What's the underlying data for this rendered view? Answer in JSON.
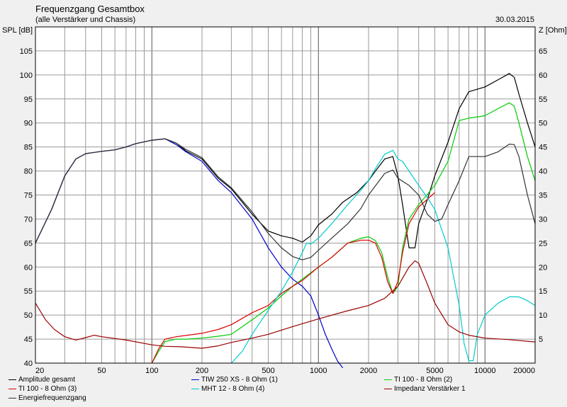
{
  "header": {
    "title": "Frequenzgang Gesamtbox",
    "subtitle": "(alle Verstärker und Chassis)",
    "date": "30.03.2015"
  },
  "chart_data": {
    "type": "line",
    "ylabel": "SPL [dB]",
    "y2label": "Z [Ohm]",
    "xscale": "log",
    "xlim": [
      20,
      20000
    ],
    "ylim": [
      40,
      110
    ],
    "y2lim": [
      0,
      70
    ],
    "grid": true,
    "legend_position": "bottom",
    "x_ticks": [
      20,
      50,
      100,
      200,
      500,
      1000,
      2000,
      5000,
      10000,
      20000
    ],
    "y_ticks": [
      40,
      45,
      50,
      55,
      60,
      65,
      70,
      75,
      80,
      85,
      90,
      95,
      100,
      105
    ],
    "y2_ticks": [
      5,
      10,
      15,
      20,
      25,
      30,
      35,
      40,
      45,
      50,
      55,
      60,
      65
    ],
    "series": [
      {
        "name": "Amplitude gesamt",
        "color": "#000000",
        "axis": "left",
        "points": [
          [
            20,
            65
          ],
          [
            25,
            72
          ],
          [
            30,
            79
          ],
          [
            35,
            82.5
          ],
          [
            40,
            83.6
          ],
          [
            50,
            84.1
          ],
          [
            60,
            84.4
          ],
          [
            70,
            85
          ],
          [
            80,
            85.7
          ],
          [
            100,
            86.4
          ],
          [
            120,
            86.7
          ],
          [
            140,
            85.8
          ],
          [
            160,
            84.2
          ],
          [
            200,
            82.5
          ],
          [
            250,
            78.5
          ],
          [
            300,
            76.3
          ],
          [
            400,
            71
          ],
          [
            500,
            67.5
          ],
          [
            600,
            66.5
          ],
          [
            700,
            66
          ],
          [
            800,
            65.2
          ],
          [
            900,
            66.5
          ],
          [
            1000,
            68.8
          ],
          [
            1200,
            71
          ],
          [
            1400,
            73.5
          ],
          [
            1700,
            75.5
          ],
          [
            2000,
            78
          ],
          [
            2200,
            80
          ],
          [
            2500,
            82.5
          ],
          [
            2800,
            83
          ],
          [
            3000,
            79
          ],
          [
            3200,
            73
          ],
          [
            3500,
            64
          ],
          [
            3800,
            64
          ],
          [
            4000,
            69
          ],
          [
            4500,
            74
          ],
          [
            5000,
            79
          ],
          [
            6000,
            86
          ],
          [
            7000,
            93
          ],
          [
            8000,
            96.5
          ],
          [
            10000,
            97.5
          ],
          [
            12000,
            99
          ],
          [
            14000,
            100.3
          ],
          [
            15000,
            99.5
          ],
          [
            16000,
            96
          ],
          [
            18000,
            90
          ],
          [
            20000,
            85
          ]
        ]
      },
      {
        "name": "TIW 250 XS - 8 Ohm (1)",
        "color": "#0000cc",
        "axis": "left",
        "points": [
          [
            20,
            65
          ],
          [
            25,
            72
          ],
          [
            30,
            79
          ],
          [
            35,
            82.5
          ],
          [
            40,
            83.6
          ],
          [
            50,
            84.1
          ],
          [
            60,
            84.4
          ],
          [
            70,
            85
          ],
          [
            80,
            85.7
          ],
          [
            100,
            86.4
          ],
          [
            120,
            86.7
          ],
          [
            140,
            85.5
          ],
          [
            160,
            84
          ],
          [
            200,
            82
          ],
          [
            250,
            78
          ],
          [
            300,
            75.5
          ],
          [
            400,
            70
          ],
          [
            500,
            64
          ],
          [
            600,
            60
          ],
          [
            700,
            57.5
          ],
          [
            800,
            56
          ],
          [
            900,
            54
          ],
          [
            1000,
            50
          ],
          [
            1100,
            46
          ],
          [
            1200,
            43
          ],
          [
            1300,
            40.5
          ],
          [
            1400,
            39
          ]
        ]
      },
      {
        "name": "TI 100 - 8 Ohm (2)",
        "color": "#00cc00",
        "axis": "left",
        "points": [
          [
            100,
            40
          ],
          [
            110,
            42.5
          ],
          [
            120,
            44.5
          ],
          [
            140,
            45
          ],
          [
            160,
            45
          ],
          [
            200,
            45.2
          ],
          [
            250,
            45.6
          ],
          [
            300,
            46
          ],
          [
            400,
            49
          ],
          [
            500,
            51.5
          ],
          [
            600,
            54
          ],
          [
            700,
            56
          ],
          [
            800,
            57.5
          ],
          [
            1000,
            60
          ],
          [
            1200,
            62
          ],
          [
            1500,
            65
          ],
          [
            1800,
            66
          ],
          [
            2000,
            66.3
          ],
          [
            2200,
            65.5
          ],
          [
            2400,
            63
          ],
          [
            2600,
            58
          ],
          [
            2800,
            54.5
          ],
          [
            3000,
            56
          ],
          [
            3200,
            64
          ],
          [
            3500,
            70
          ],
          [
            4000,
            73
          ],
          [
            5000,
            77
          ],
          [
            6000,
            82
          ],
          [
            7000,
            90.5
          ],
          [
            8000,
            91
          ],
          [
            10000,
            91.5
          ],
          [
            12000,
            93
          ],
          [
            14000,
            94.2
          ],
          [
            15000,
            93.5
          ],
          [
            16000,
            90
          ],
          [
            18000,
            83
          ],
          [
            20000,
            78
          ]
        ]
      },
      {
        "name": "TI 100 - 8 Ohm (3)",
        "color": "#dd0000",
        "axis": "left",
        "points": [
          [
            100,
            40
          ],
          [
            110,
            43
          ],
          [
            120,
            45
          ],
          [
            140,
            45.5
          ],
          [
            200,
            46.2
          ],
          [
            250,
            47
          ],
          [
            300,
            48
          ],
          [
            400,
            50.5
          ],
          [
            500,
            52
          ],
          [
            600,
            54.5
          ],
          [
            700,
            56
          ],
          [
            800,
            57.2
          ],
          [
            1000,
            60
          ],
          [
            1200,
            62
          ],
          [
            1500,
            65
          ],
          [
            1800,
            65.6
          ],
          [
            2000,
            65.6
          ],
          [
            2200,
            65
          ],
          [
            2400,
            62
          ],
          [
            2600,
            57
          ],
          [
            2800,
            54.5
          ],
          [
            3000,
            57
          ],
          [
            3200,
            63
          ],
          [
            3500,
            69
          ],
          [
            4000,
            72.5
          ],
          [
            5000,
            75.5
          ]
        ]
      },
      {
        "name": "MHT 12 - 8 Ohm (4)",
        "color": "#00cccc",
        "axis": "left",
        "points": [
          [
            300,
            40
          ],
          [
            350,
            42.5
          ],
          [
            400,
            46
          ],
          [
            500,
            51
          ],
          [
            600,
            55
          ],
          [
            700,
            59
          ],
          [
            800,
            63
          ],
          [
            850,
            65
          ],
          [
            900,
            64.8
          ],
          [
            1000,
            66
          ],
          [
            1200,
            69
          ],
          [
            1500,
            73
          ],
          [
            1800,
            76
          ],
          [
            2000,
            78
          ],
          [
            2200,
            80.5
          ],
          [
            2500,
            83.5
          ],
          [
            2800,
            84.3
          ],
          [
            3000,
            82.5
          ],
          [
            3200,
            82
          ],
          [
            3500,
            80
          ],
          [
            4000,
            77
          ],
          [
            4500,
            74.5
          ],
          [
            5000,
            72
          ],
          [
            6000,
            64
          ],
          [
            7000,
            52
          ],
          [
            7500,
            44
          ],
          [
            8000,
            40.5
          ],
          [
            8500,
            40.5
          ],
          [
            9000,
            46
          ],
          [
            10000,
            50
          ],
          [
            12000,
            52.5
          ],
          [
            14000,
            53.8
          ],
          [
            16000,
            53.8
          ],
          [
            18000,
            53
          ],
          [
            20000,
            52
          ]
        ]
      },
      {
        "name": "Impedanz Verstärker 1",
        "color": "#990000",
        "axis": "right",
        "points": [
          [
            20,
            12.5
          ],
          [
            23,
            9
          ],
          [
            26,
            7
          ],
          [
            30,
            5.5
          ],
          [
            35,
            4.8
          ],
          [
            40,
            5.3
          ],
          [
            45,
            5.8
          ],
          [
            50,
            5.5
          ],
          [
            70,
            4.8
          ],
          [
            100,
            3.8
          ],
          [
            120,
            3.5
          ],
          [
            150,
            3.4
          ],
          [
            200,
            3.1
          ],
          [
            250,
            3.6
          ],
          [
            300,
            4.3
          ],
          [
            400,
            5.2
          ],
          [
            500,
            6
          ],
          [
            700,
            7.6
          ],
          [
            1000,
            9.2
          ],
          [
            1500,
            10.9
          ],
          [
            2000,
            12
          ],
          [
            2500,
            13.5
          ],
          [
            3000,
            16
          ],
          [
            3500,
            20
          ],
          [
            3800,
            21.3
          ],
          [
            4000,
            20.8
          ],
          [
            4500,
            16.5
          ],
          [
            5000,
            12.5
          ],
          [
            6000,
            8
          ],
          [
            7000,
            6.5
          ],
          [
            8000,
            5.8
          ],
          [
            10000,
            5.2
          ],
          [
            14000,
            4.9
          ],
          [
            20000,
            4.4
          ]
        ]
      },
      {
        "name": "Energiefrequenzgang",
        "color": "#333333",
        "axis": "left",
        "points": [
          [
            20,
            65
          ],
          [
            25,
            72
          ],
          [
            30,
            79
          ],
          [
            35,
            82.5
          ],
          [
            40,
            83.6
          ],
          [
            50,
            84.1
          ],
          [
            60,
            84.4
          ],
          [
            70,
            85
          ],
          [
            80,
            85.7
          ],
          [
            100,
            86.4
          ],
          [
            120,
            86.7
          ],
          [
            140,
            85.8
          ],
          [
            160,
            84.5
          ],
          [
            200,
            82.8
          ],
          [
            250,
            78.8
          ],
          [
            300,
            76.5
          ],
          [
            400,
            71.5
          ],
          [
            500,
            67
          ],
          [
            600,
            64
          ],
          [
            700,
            62.2
          ],
          [
            800,
            61.5
          ],
          [
            900,
            62
          ],
          [
            1000,
            63.5
          ],
          [
            1200,
            66
          ],
          [
            1500,
            69
          ],
          [
            1800,
            72.2
          ],
          [
            2000,
            75
          ],
          [
            2500,
            79.5
          ],
          [
            2800,
            80.2
          ],
          [
            3000,
            78.5
          ],
          [
            3500,
            77
          ],
          [
            4000,
            75
          ],
          [
            4500,
            71
          ],
          [
            5000,
            69.5
          ],
          [
            5500,
            70
          ],
          [
            6000,
            73
          ],
          [
            7000,
            78
          ],
          [
            8000,
            83
          ],
          [
            10000,
            83
          ],
          [
            12000,
            84
          ],
          [
            14000,
            85.6
          ],
          [
            15000,
            85.5
          ],
          [
            16000,
            83
          ],
          [
            18000,
            75
          ],
          [
            20000,
            69
          ]
        ]
      }
    ]
  }
}
